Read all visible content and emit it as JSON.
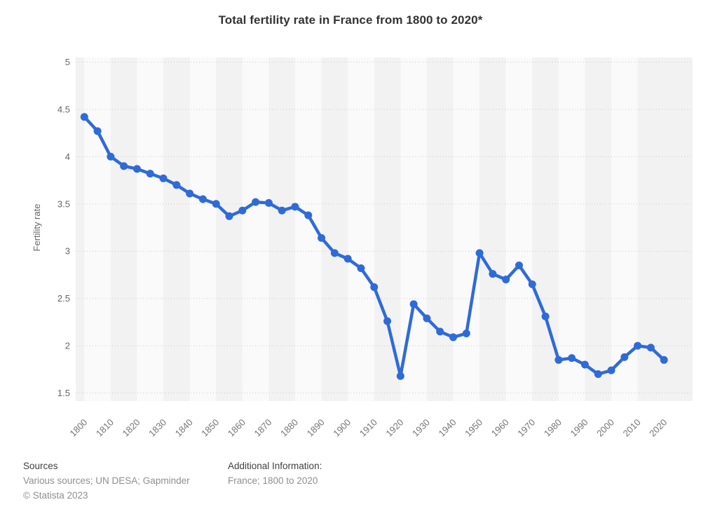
{
  "title": "Total fertility rate in France from 1800 to 2020*",
  "chart_data": {
    "type": "line",
    "title": "Total fertility rate in France from 1800 to 2020*",
    "xlabel": "",
    "ylabel": "Fertility rate",
    "ylim": [
      1.5,
      5
    ],
    "ytick_step": 0.5,
    "xticks": [
      1800,
      1810,
      1820,
      1830,
      1840,
      1850,
      1860,
      1870,
      1880,
      1890,
      1900,
      1910,
      1920,
      1930,
      1940,
      1950,
      1960,
      1970,
      1980,
      1990,
      2000,
      2010,
      2020
    ],
    "x": [
      1800,
      1805,
      1810,
      1815,
      1820,
      1825,
      1830,
      1835,
      1840,
      1845,
      1850,
      1855,
      1860,
      1865,
      1870,
      1875,
      1880,
      1885,
      1890,
      1895,
      1900,
      1905,
      1910,
      1915,
      1920,
      1925,
      1930,
      1935,
      1940,
      1945,
      1950,
      1955,
      1960,
      1965,
      1970,
      1975,
      1980,
      1985,
      1990,
      1995,
      2000,
      2005,
      2010,
      2015,
      2020
    ],
    "values": [
      4.42,
      4.27,
      4.0,
      3.9,
      3.87,
      3.82,
      3.77,
      3.7,
      3.61,
      3.55,
      3.5,
      3.37,
      3.43,
      3.52,
      3.51,
      3.43,
      3.47,
      3.38,
      3.14,
      2.98,
      2.92,
      2.82,
      2.62,
      2.26,
      1.68,
      2.44,
      2.29,
      2.15,
      2.09,
      2.13,
      2.98,
      2.76,
      2.7,
      2.85,
      2.65,
      2.31,
      1.85,
      1.87,
      1.8,
      1.7,
      1.74,
      1.88,
      2.0,
      1.98,
      1.85
    ],
    "grid": "horizontal-dotted",
    "legend": "none",
    "colors": {
      "line": "#2f6bd8",
      "marker": "#2f6bd8",
      "band_base": "#f2f2f2",
      "band_light": "#fafafa",
      "grid": "#c9c9c9",
      "axis_text": "#666666",
      "xaxis_text": "#757575"
    }
  },
  "footer": {
    "sources_label": "Sources",
    "sources_text": "Various sources; UN DESA; Gapminder",
    "copyright": "© Statista 2023",
    "additional_label": "Additional Information:",
    "additional_text": "France; 1800 to 2020"
  }
}
